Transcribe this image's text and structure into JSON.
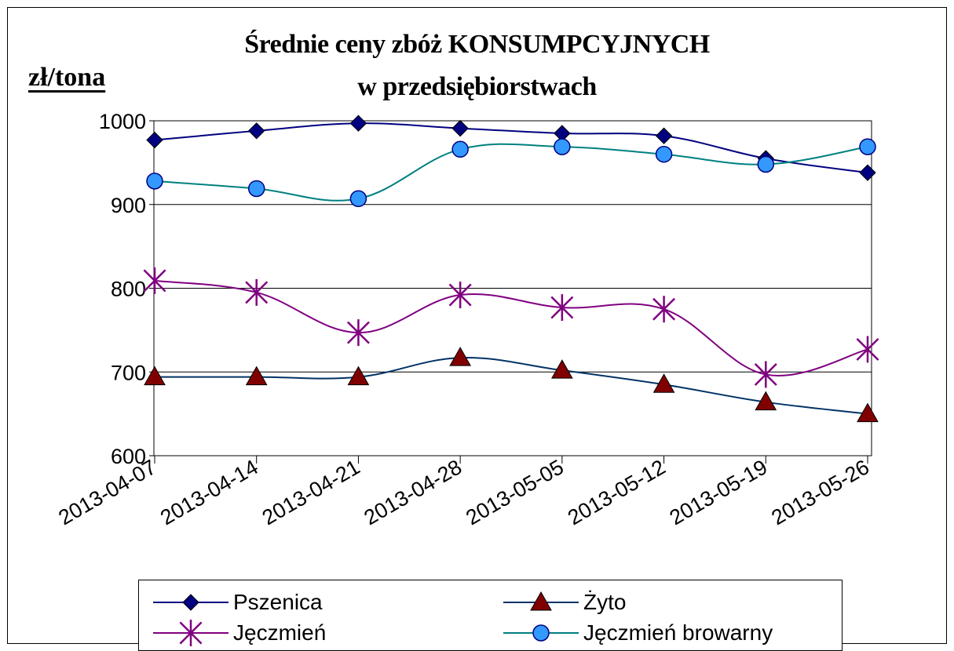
{
  "chart_data": {
    "type": "line",
    "title_line1": "Średnie ceny zbóż KONSUMPCYJNYCH",
    "title_line2": "w przedsiębiorstwach",
    "ylabel": "zł/tona",
    "ylim": [
      600,
      1000
    ],
    "yticks": [
      "600",
      "700",
      "800",
      "900",
      "1000"
    ],
    "grid": true,
    "categories": [
      "2013-04-07",
      "2013-04-14",
      "2013-04-21",
      "2013-04-28",
      "2013-05-05",
      "2013-05-12",
      "2013-05-19",
      "2013-05-26"
    ],
    "series": [
      {
        "name": "Pszenica",
        "color": "#000080",
        "line_color": "#000080",
        "marker": "diamond",
        "marker_color": "#000080",
        "values": [
          977,
          988,
          997,
          991,
          985,
          982,
          955,
          938
        ]
      },
      {
        "name": "Żyto",
        "color": "#800000",
        "line_color": "#003366",
        "marker": "triangle",
        "marker_color": "#800000",
        "values": [
          694,
          694,
          694,
          717,
          702,
          685,
          664,
          650
        ]
      },
      {
        "name": "Jęczmień",
        "color": "#800080",
        "line_color": "#800080",
        "marker": "star",
        "marker_color": "#800080",
        "values": [
          809,
          795,
          747,
          792,
          777,
          775,
          697,
          727
        ]
      },
      {
        "name": "Jęczmień browarny",
        "color": "#3399ff",
        "line_color": "#008080",
        "marker": "circle",
        "marker_color": "#3399ff",
        "values": [
          928,
          919,
          907,
          966,
          969,
          960,
          948,
          969
        ]
      }
    ],
    "legend_position": "bottom"
  }
}
